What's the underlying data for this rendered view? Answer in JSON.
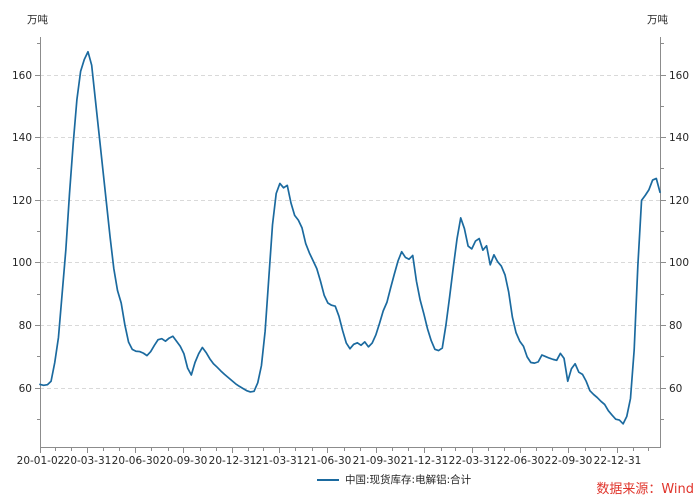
{
  "header": {
    "unit_left": "万吨",
    "unit_right": "万吨"
  },
  "legend": {
    "label": "中国:现货库存:电解铝:合计"
  },
  "source": {
    "label": "数据来源：Wind"
  },
  "colors": {
    "line": "#1b6a9f",
    "grid": "#d9d9d9",
    "axis": "#8c8c8c",
    "tick_text": "#262626",
    "source_text": "#e0342b",
    "background": "#ffffff"
  },
  "chart_data": {
    "type": "line",
    "title": "",
    "series": [
      {
        "name": "中国:现货库存:电解铝:合计",
        "unit": "万吨",
        "x_start_date": "2020-01-02",
        "interval_days": 7,
        "values": [
          61.0,
          60.7,
          60.9,
          62.0,
          68.0,
          76.0,
          90.0,
          104.0,
          122.0,
          138.0,
          152.0,
          161.0,
          164.8,
          167.3,
          163.0,
          152.0,
          141.0,
          130.0,
          119.0,
          108.0,
          98.0,
          91.0,
          87.0,
          80.0,
          74.5,
          72.2,
          71.6,
          71.5,
          71.0,
          70.2,
          71.5,
          73.5,
          75.3,
          75.6,
          74.8,
          75.8,
          76.4,
          74.8,
          73.2,
          70.8,
          66.2,
          64.0,
          68.0,
          70.8,
          72.8,
          71.2,
          69.2,
          67.6,
          66.5,
          65.3,
          64.2,
          63.2,
          62.2,
          61.2,
          60.4,
          59.7,
          59.0,
          58.6,
          58.8,
          61.5,
          67.0,
          78.0,
          95.0,
          112.0,
          122.0,
          125.2,
          123.8,
          124.6,
          119.0,
          115.0,
          113.5,
          111.0,
          106.0,
          103.0,
          100.5,
          98.0,
          94.0,
          89.5,
          87.0,
          86.3,
          86.0,
          82.8,
          78.2,
          74.2,
          72.4,
          73.8,
          74.3,
          73.5,
          74.6,
          73.0,
          74.2,
          76.8,
          80.5,
          84.5,
          87.2,
          91.8,
          96.2,
          100.4,
          103.4,
          101.6,
          101.0,
          102.2,
          94.0,
          88.0,
          83.6,
          78.8,
          75.0,
          72.2,
          71.8,
          72.6,
          80.0,
          89.0,
          98.5,
          107.5,
          114.2,
          110.8,
          105.2,
          104.3,
          106.8,
          107.6,
          103.9,
          105.3,
          99.2,
          102.4,
          100.2,
          98.8,
          96.0,
          90.5,
          82.5,
          77.5,
          74.8,
          73.2,
          69.8,
          68.0,
          67.8,
          68.2,
          70.4,
          69.9,
          69.4,
          69.0,
          68.7,
          70.9,
          69.3,
          62.0,
          66.0,
          67.6,
          64.9,
          64.2,
          62.0,
          59.0,
          57.8,
          56.8,
          55.6,
          54.6,
          52.6,
          51.2,
          49.9,
          49.6,
          48.4,
          50.8,
          56.5,
          72.0,
          99.0,
          119.8,
          121.4,
          123.2,
          126.3,
          126.8,
          122.4
        ]
      }
    ],
    "x_axis": {
      "total_days": 1176,
      "major_ticks": [
        {
          "label": "20-01-02",
          "day": 0
        },
        {
          "label": "20-03-31",
          "day": 89
        },
        {
          "label": "20-06-30",
          "day": 180
        },
        {
          "label": "20-09-30",
          "day": 272
        },
        {
          "label": "20-12-31",
          "day": 364
        },
        {
          "label": "21-03-31",
          "day": 454
        },
        {
          "label": "21-06-30",
          "day": 545
        },
        {
          "label": "21-09-30",
          "day": 637
        },
        {
          "label": "21-12-31",
          "day": 729
        },
        {
          "label": "22-03-31",
          "day": 819
        },
        {
          "label": "22-06-30",
          "day": 910
        },
        {
          "label": "22-09-30",
          "day": 1002
        },
        {
          "label": "22-12-31",
          "day": 1094
        }
      ],
      "minor_tick_days": [
        29,
        58,
        119,
        150,
        211,
        242,
        303,
        333,
        395,
        423,
        484,
        515,
        576,
        607,
        668,
        698,
        760,
        788,
        849,
        880,
        941,
        972,
        1033,
        1063,
        1125,
        1153
      ]
    },
    "y_axis": {
      "range": [
        41,
        172
      ],
      "major_ticks": [
        60,
        80,
        100,
        120,
        140,
        160
      ],
      "minor_ticks": [
        50,
        70,
        90,
        110,
        130,
        150,
        170
      ],
      "labels_on_both_sides": true
    },
    "grid": "horizontal-dashed",
    "legend_position": "bottom-center"
  }
}
